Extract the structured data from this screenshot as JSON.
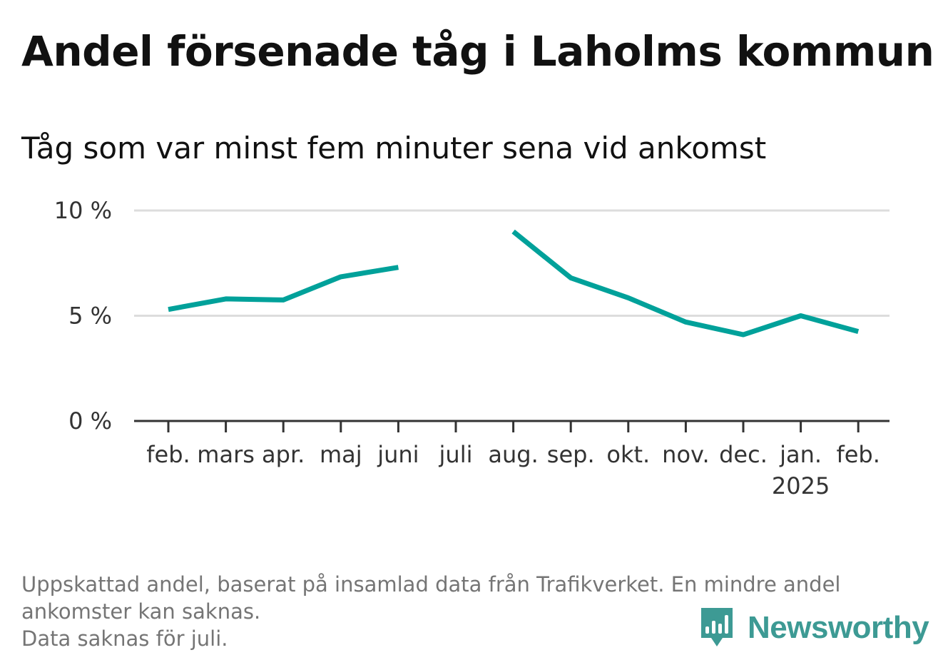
{
  "chart_data": {
    "type": "line",
    "title": "Andel försenade tåg i Laholms kommun",
    "subtitle": "Tåg som var minst fem minuter sena vid ankomst",
    "categories": [
      "feb.",
      "mars",
      "apr.",
      "maj",
      "juni",
      "juli",
      "aug.",
      "sep.",
      "okt.",
      "nov.",
      "dec.",
      "jan.",
      "feb."
    ],
    "category_sublabels": [
      "",
      "",
      "",
      "",
      "",
      "",
      "",
      "",
      "",
      "",
      "",
      "2025",
      ""
    ],
    "series": [
      {
        "values": [
          5.3,
          5.8,
          5.75,
          6.85,
          7.3,
          null,
          9.0,
          6.8,
          5.85,
          4.7,
          4.1,
          5.0,
          4.25
        ]
      }
    ],
    "y_ticks": [
      {
        "value": 0,
        "label": "0 %"
      },
      {
        "value": 5,
        "label": "5 %"
      },
      {
        "value": 10,
        "label": "10 %"
      }
    ],
    "ylim": [
      0,
      10
    ],
    "grid": true,
    "line_color": "#00a19a",
    "grid_color": "#dddddd",
    "axis_color": "#333333"
  },
  "footnote": {
    "line1": "Uppskattad andel, baserat på insamlad data från Trafikverket. En mindre andel",
    "line2": "ankomster kan saknas.",
    "line3": "Data saknas för juli."
  },
  "brand": {
    "name": "Newsworthy",
    "icon": "newsworthy-logo-icon",
    "color": "#3d9a94"
  }
}
